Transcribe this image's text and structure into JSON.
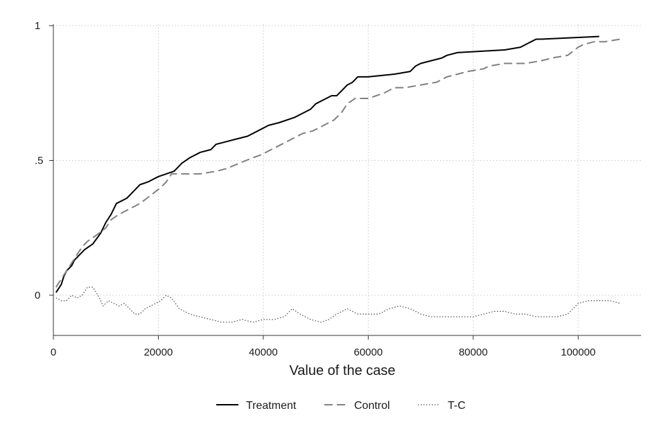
{
  "chart_data": {
    "type": "line",
    "title": "",
    "xlabel": "Value of the case",
    "ylabel": "",
    "xlim": [
      0,
      110000
    ],
    "ylim": [
      -0.14,
      1.0
    ],
    "xticks": [
      0,
      20000,
      40000,
      60000,
      80000,
      100000
    ],
    "xtick_labels": [
      "0",
      "20000",
      "40000",
      "60000",
      "80000",
      "100000"
    ],
    "yticks": [
      0,
      0.5,
      1
    ],
    "ytick_labels": [
      "0",
      ".5",
      "1"
    ],
    "grid": true,
    "legend_position": "bottom",
    "series": [
      {
        "name": "Treatment",
        "color": "#000000",
        "dash": "solid",
        "x": [
          500,
          1500,
          2000,
          2500,
          3500,
          4000,
          5000,
          6000,
          7500,
          9000,
          10000,
          11000,
          12000,
          14000,
          15000,
          16500,
          18000,
          20000,
          23000,
          24500,
          26000,
          28000,
          30000,
          31000,
          33000,
          35000,
          37000,
          38000,
          40000,
          41000,
          43000,
          46000,
          47000,
          48000,
          49000,
          50000,
          51000,
          52000,
          53000,
          54000,
          55000,
          56000,
          57000,
          57500,
          58000,
          60000,
          65000,
          68000,
          69000,
          70000,
          72000,
          74000,
          75000,
          77000,
          86000,
          89000,
          90000,
          91000,
          92000,
          93000,
          104000
        ],
        "y": [
          0.01,
          0.04,
          0.07,
          0.09,
          0.11,
          0.13,
          0.15,
          0.17,
          0.19,
          0.23,
          0.27,
          0.3,
          0.34,
          0.36,
          0.38,
          0.41,
          0.42,
          0.44,
          0.46,
          0.49,
          0.51,
          0.53,
          0.54,
          0.56,
          0.57,
          0.58,
          0.59,
          0.6,
          0.62,
          0.63,
          0.64,
          0.66,
          0.67,
          0.68,
          0.69,
          0.71,
          0.72,
          0.73,
          0.74,
          0.74,
          0.76,
          0.78,
          0.79,
          0.8,
          0.81,
          0.81,
          0.82,
          0.83,
          0.85,
          0.86,
          0.87,
          0.88,
          0.89,
          0.9,
          0.91,
          0.92,
          0.93,
          0.94,
          0.95,
          0.95,
          0.96
        ]
      },
      {
        "name": "Control",
        "color": "#808080",
        "dash": "dashed",
        "x": [
          500,
          1500,
          2500,
          3500,
          4500,
          5500,
          6500,
          8000,
          10000,
          11000,
          12500,
          14500,
          16500,
          18500,
          20500,
          21500,
          22500,
          25000,
          28000,
          31000,
          33000,
          35500,
          38000,
          39500,
          41500,
          43500,
          45500,
          47500,
          49500,
          51500,
          53500,
          55000,
          56000,
          57500,
          60000,
          63000,
          65000,
          67000,
          70000,
          73000,
          75000,
          79000,
          82000,
          83000,
          86000,
          90000,
          93000,
          95000,
          98000,
          100000,
          101000,
          103000,
          105000,
          108000
        ],
        "y": [
          0.03,
          0.06,
          0.09,
          0.12,
          0.15,
          0.18,
          0.2,
          0.22,
          0.25,
          0.28,
          0.3,
          0.32,
          0.34,
          0.37,
          0.4,
          0.42,
          0.45,
          0.45,
          0.45,
          0.46,
          0.47,
          0.49,
          0.51,
          0.52,
          0.54,
          0.56,
          0.58,
          0.6,
          0.61,
          0.63,
          0.65,
          0.68,
          0.71,
          0.73,
          0.73,
          0.75,
          0.77,
          0.77,
          0.78,
          0.79,
          0.81,
          0.83,
          0.84,
          0.85,
          0.86,
          0.86,
          0.87,
          0.88,
          0.89,
          0.92,
          0.93,
          0.94,
          0.94,
          0.95
        ]
      },
      {
        "name": "T-C",
        "color": "#555555",
        "dash": "dotted",
        "x": [
          500,
          1500,
          2500,
          3500,
          4500,
          5500,
          6500,
          7500,
          8500,
          9500,
          10500,
          11500,
          12500,
          13500,
          14500,
          15500,
          16500,
          17500,
          18500,
          19500,
          20500,
          21500,
          22500,
          24000,
          26000,
          28000,
          30000,
          32000,
          34000,
          36000,
          38000,
          40000,
          42000,
          44000,
          45500,
          47000,
          49000,
          51000,
          52500,
          54000,
          56000,
          58000,
          60000,
          62000,
          64000,
          66000,
          68000,
          70000,
          72000,
          74000,
          76000,
          78000,
          80000,
          82000,
          84000,
          86000,
          88000,
          90000,
          92000,
          94000,
          96000,
          98000,
          100000,
          102000,
          104000,
          106000,
          108000
        ],
        "y": [
          -0.01,
          -0.02,
          -0.02,
          0.0,
          -0.01,
          0.0,
          0.03,
          0.03,
          0.0,
          -0.04,
          -0.02,
          -0.03,
          -0.04,
          -0.03,
          -0.05,
          -0.07,
          -0.07,
          -0.05,
          -0.04,
          -0.03,
          -0.02,
          0.0,
          -0.01,
          -0.05,
          -0.07,
          -0.08,
          -0.09,
          -0.1,
          -0.1,
          -0.09,
          -0.1,
          -0.09,
          -0.09,
          -0.08,
          -0.05,
          -0.07,
          -0.09,
          -0.1,
          -0.09,
          -0.07,
          -0.05,
          -0.07,
          -0.07,
          -0.07,
          -0.05,
          -0.04,
          -0.05,
          -0.07,
          -0.08,
          -0.08,
          -0.08,
          -0.08,
          -0.08,
          -0.07,
          -0.06,
          -0.06,
          -0.07,
          -0.07,
          -0.08,
          -0.08,
          -0.08,
          -0.07,
          -0.03,
          -0.02,
          -0.02,
          -0.02,
          -0.03
        ]
      }
    ]
  }
}
